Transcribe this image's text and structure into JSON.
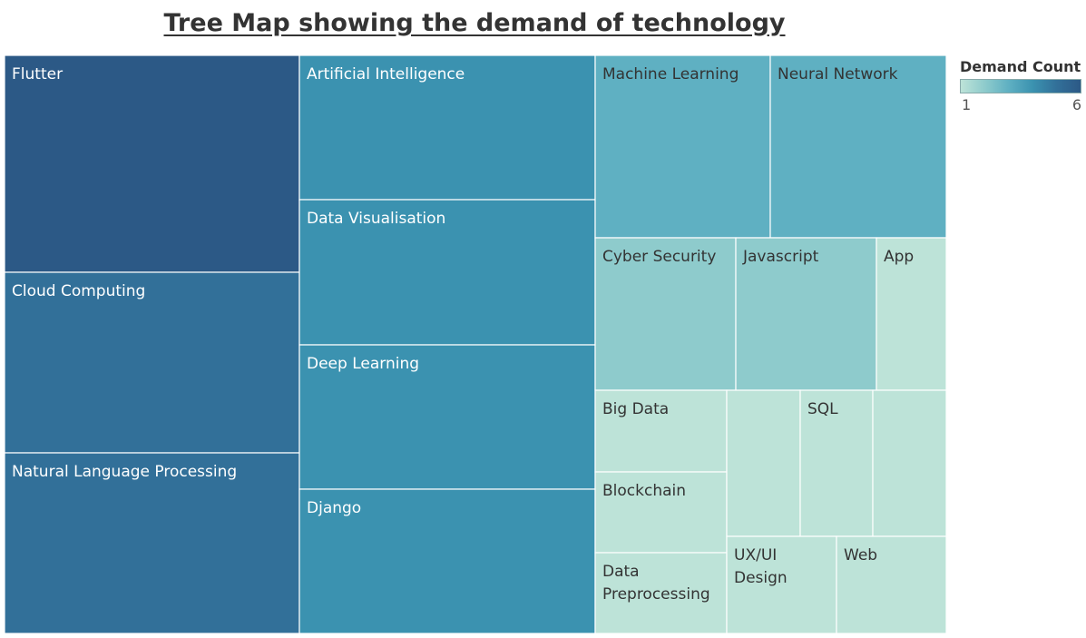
{
  "chart_data": {
    "type": "treemap",
    "title": "Tree Map showing the demand of technology",
    "color_legend": {
      "title": "Demand Count",
      "min": 1,
      "max": 6,
      "min_label": "1",
      "max_label": "6",
      "colors": [
        "#bde3d8",
        "#8ecbcc",
        "#5fb0c2",
        "#3b92b0",
        "#327099",
        "#2c5986"
      ]
    },
    "nodes": [
      {
        "label": "Flutter",
        "value": 6
      },
      {
        "label": "Cloud Computing",
        "value": 5
      },
      {
        "label": "Natural Language Processing",
        "value": 5
      },
      {
        "label": "Artificial Intelligence",
        "value": 4
      },
      {
        "label": "Data Visualisation",
        "value": 4
      },
      {
        "label": "Deep Learning",
        "value": 4
      },
      {
        "label": "Django",
        "value": 4
      },
      {
        "label": "Machine Learning",
        "value": 3
      },
      {
        "label": "Neural Network",
        "value": 3
      },
      {
        "label": "Cyber Security",
        "value": 2
      },
      {
        "label": "Javascript",
        "value": 2
      },
      {
        "label": "App",
        "value": 1
      },
      {
        "label": "Big Data",
        "value": 1
      },
      {
        "label": "Blockchain",
        "value": 1
      },
      {
        "label": "Data Preprocessing",
        "value": 1
      },
      {
        "label": "",
        "value": 1
      },
      {
        "label": "SQL",
        "value": 1
      },
      {
        "label": "",
        "value": 1
      },
      {
        "label": "UX/UI Design",
        "value": 1
      },
      {
        "label": "Web",
        "value": 1
      }
    ]
  }
}
